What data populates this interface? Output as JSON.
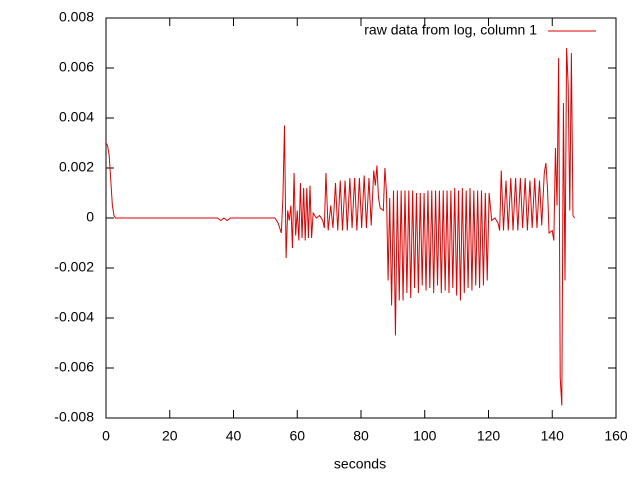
{
  "chart_data": {
    "type": "line",
    "x_label": "seconds",
    "x": [
      0,
      0.5,
      1,
      1.5,
      2,
      2.5,
      3,
      10,
      20,
      30,
      35,
      36,
      37,
      38,
      39,
      45,
      53,
      54,
      55,
      55.5,
      56,
      56.5,
      57,
      57.5,
      58,
      58.5,
      59,
      59.5,
      60,
      60.5,
      61,
      61.5,
      62,
      62.5,
      63,
      63.5,
      64,
      64.5,
      65,
      66,
      67,
      68,
      68.5,
      69,
      69.7,
      70.5,
      71.2,
      72,
      72.7,
      73.5,
      74.2,
      75,
      75.7,
      76.5,
      77.2,
      78,
      78.7,
      79.5,
      80.2,
      81,
      81.7,
      82.5,
      83.2,
      84,
      84.5,
      85,
      85.5,
      86,
      87,
      87.5,
      88,
      88.5,
      89,
      89.6,
      90.2,
      90.8,
      91.4,
      92,
      92.6,
      93.2,
      93.8,
      94.4,
      95,
      95.6,
      96.2,
      96.8,
      97.4,
      98,
      98.6,
      99.2,
      99.8,
      100.4,
      101,
      101.6,
      102.2,
      102.8,
      103.4,
      104,
      104.6,
      105.2,
      105.8,
      106.4,
      107,
      107.6,
      108.2,
      108.8,
      109.4,
      110,
      110.6,
      111.2,
      111.8,
      112.4,
      113,
      113.6,
      114.2,
      114.8,
      115.4,
      116,
      116.6,
      117.2,
      117.8,
      118.4,
      119,
      119.6,
      120.2,
      121,
      122,
      123,
      123.5,
      124,
      124.7,
      125.5,
      126.2,
      127,
      127.7,
      128.5,
      129.2,
      130,
      130.7,
      131.5,
      132.2,
      133,
      133.7,
      134.5,
      135.2,
      136,
      136.7,
      137.5,
      138,
      138.5,
      139,
      140,
      140.5,
      141,
      141.5,
      142,
      142.5,
      143,
      143.5,
      144,
      144.5,
      145,
      145.5,
      146,
      146.5,
      147
    ],
    "series": [
      {
        "name": "raw data from log, column 1",
        "color": "#e00000",
        "values": [
          0.003,
          0.0029,
          0.0025,
          0.0015,
          0.0005,
          0.0001,
          0,
          0,
          0,
          0,
          0,
          -0.0001,
          0,
          -0.0001,
          0,
          0,
          0,
          -0.0002,
          -0.0006,
          0.0008,
          0.0037,
          -0.0016,
          0.0003,
          -0.0001,
          0.0005,
          -0.0012,
          0.0018,
          -0.0007,
          0.0003,
          -0.0009,
          0.0014,
          -0.0008,
          0.0012,
          -0.0009,
          0.0012,
          -0.0008,
          0.0013,
          -0.0008,
          0.0002,
          0,
          0.0001,
          -0.0001,
          -0.0004,
          0.0018,
          -0.0005,
          0.0005,
          -0.0004,
          0.0014,
          -0.0005,
          0.0015,
          -0.0005,
          0.0015,
          -0.0005,
          0.0016,
          -0.0004,
          0.0016,
          -0.0005,
          0.0016,
          -0.0004,
          0.0017,
          -0.0004,
          0.0016,
          -0.0003,
          0.0019,
          0.0013,
          0.0021,
          0.0008,
          0.0004,
          0.0003,
          0.002,
          0.001,
          -0.0025,
          0.0008,
          -0.0035,
          0.0011,
          -0.0047,
          0.0011,
          -0.0033,
          0.0011,
          -0.0033,
          0.0011,
          -0.003,
          0.0011,
          -0.0032,
          0.0011,
          -0.0028,
          0.001,
          -0.003,
          0.001,
          -0.0027,
          0.001,
          -0.0029,
          0.0011,
          -0.0028,
          0.0011,
          -0.003,
          0.0011,
          -0.0027,
          0.0011,
          -0.003,
          0.0011,
          -0.0029,
          0.0011,
          -0.003,
          0.0011,
          -0.0028,
          0.0012,
          -0.0031,
          0.0011,
          -0.0033,
          0.0012,
          -0.003,
          0.0011,
          -0.0028,
          0.0012,
          -0.0029,
          0.0011,
          -0.0027,
          0.0011,
          -0.0028,
          0.0011,
          -0.0027,
          0.001,
          -0.0025,
          0.001,
          -0.0001,
          0,
          -0.0002,
          -0.0005,
          0.0019,
          -0.0005,
          0.0015,
          -0.0005,
          0.0016,
          -0.0005,
          0.0016,
          -0.0005,
          0.0016,
          -0.0004,
          0.0016,
          -0.0005,
          0.0015,
          -0.0004,
          0.0016,
          -0.0004,
          0.0015,
          -0.0003,
          0.0018,
          0.0022,
          0.0012,
          -0.0006,
          -0.0005,
          -0.0009,
          0.0028,
          0.0005,
          0.0064,
          -0.0064,
          -0.0075,
          0.0046,
          -0.0025,
          0.0068,
          0.0053,
          0.0003,
          0.0066,
          0.0001,
          0
        ]
      }
    ],
    "xlim": [
      0,
      160
    ],
    "xticks": [
      0,
      20,
      40,
      60,
      80,
      100,
      120,
      140,
      160
    ],
    "ylim": [
      -0.008,
      0.008
    ],
    "yticks": [
      -0.008,
      -0.006,
      -0.004,
      -0.002,
      0,
      0.002,
      0.004,
      0.006,
      0.008
    ],
    "grid": false,
    "legend": "top-right"
  }
}
